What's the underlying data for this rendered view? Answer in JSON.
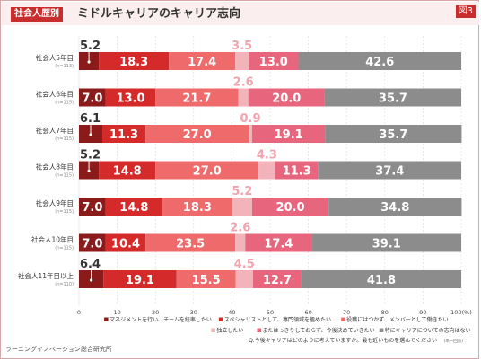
{
  "header": {
    "tag": "社会人歴別",
    "title": "ミドルキャリアのキャリア志向",
    "figure_label": "図3"
  },
  "source": "ラーニングイノベーション総合研究所",
  "chart_data": {
    "type": "bar",
    "orientation": "horizontal",
    "stacked": true,
    "categories": [
      "社会人5年目",
      "社会人6年目",
      "社会人7年目",
      "社会人8年目",
      "社会人9年目",
      "社会人10年目",
      "社会人11年目以上"
    ],
    "sample_sizes": [
      "(n=113)",
      "(n=115)",
      "(n=115)",
      "(n=115)",
      "(n=115)",
      "(n=115)",
      "(n=110)"
    ],
    "series": [
      {
        "name": "マネジメントを行い、チームを統率したい",
        "color": "#8b1a1a",
        "values": [
          5.2,
          7.0,
          6.1,
          5.2,
          7.0,
          7.0,
          6.4
        ]
      },
      {
        "name": "スペシャリストとして、専門領域を極めたい",
        "color": "#d42a2a",
        "values": [
          18.3,
          13.0,
          11.3,
          14.8,
          14.8,
          10.4,
          19.1
        ]
      },
      {
        "name": "役職にはつかず、メンバーとして働きたい",
        "color": "#ef6a6a",
        "values": [
          17.4,
          21.7,
          27.0,
          27.0,
          18.3,
          23.5,
          15.5
        ]
      },
      {
        "name": "独立したい",
        "color": "#f2b3bb",
        "values": [
          3.5,
          2.6,
          0.9,
          4.3,
          5.2,
          2.6,
          4.5
        ]
      },
      {
        "name": "またはっきりしておらず、今後決めていきたい",
        "color": "#e8657e",
        "values": [
          13.0,
          20.0,
          19.1,
          11.3,
          20.0,
          17.4,
          12.7
        ]
      },
      {
        "name": "特にキャリアについての志向はない",
        "color": "#8c8c8c",
        "values": [
          42.6,
          35.7,
          35.7,
          37.4,
          34.8,
          39.1,
          41.8
        ]
      }
    ],
    "xlim": [
      0,
      100
    ],
    "x_ticks": [
      "0",
      "10",
      "20",
      "30",
      "40",
      "50",
      "60",
      "70",
      "80",
      "90",
      "100(%)"
    ],
    "question": "Q.今後キャリアはどのように考えていますか。最も近いものを選んでください",
    "question_note": "(単一回答)"
  }
}
